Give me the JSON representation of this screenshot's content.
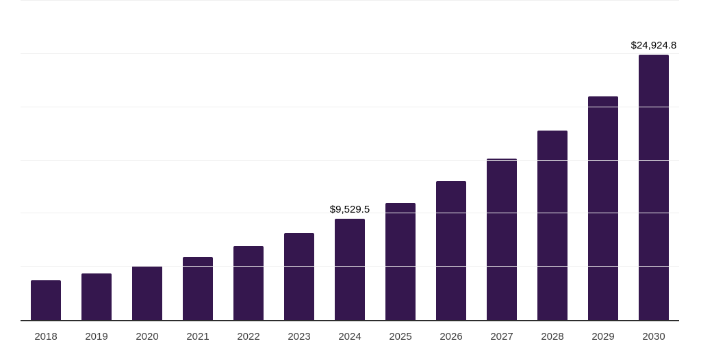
{
  "chart_data": {
    "type": "bar",
    "title": "",
    "xlabel": "",
    "ylabel": "",
    "categories": [
      "2018",
      "2019",
      "2020",
      "2021",
      "2022",
      "2023",
      "2024",
      "2025",
      "2026",
      "2027",
      "2028",
      "2029",
      "2030"
    ],
    "values": [
      3710,
      4370,
      5075,
      5910,
      6950,
      8150,
      9529.5,
      11010,
      13010,
      15140,
      17810,
      21010,
      24924.8
    ],
    "value_labels": [
      "",
      "",
      "",
      "",
      "",
      "",
      "$9,529.5",
      "",
      "",
      "",
      "",
      "",
      "$24,924.8"
    ],
    "labeled_points": {
      "2024": "$9,529.5",
      "2030": "$24,924.8"
    },
    "ylim": [
      0,
      30000
    ],
    "gridline_step": 5000,
    "grid": "horizontal",
    "legend": "none",
    "y_tick_labels_visible": false
  },
  "style": {
    "bar_color": "#35174e",
    "grid_color": "#efefef",
    "axis_line_color": "#2d2d2d",
    "tick_label_color": "#3c3c3c",
    "data_label_color": "#000000",
    "background_color": "#ffffff"
  }
}
